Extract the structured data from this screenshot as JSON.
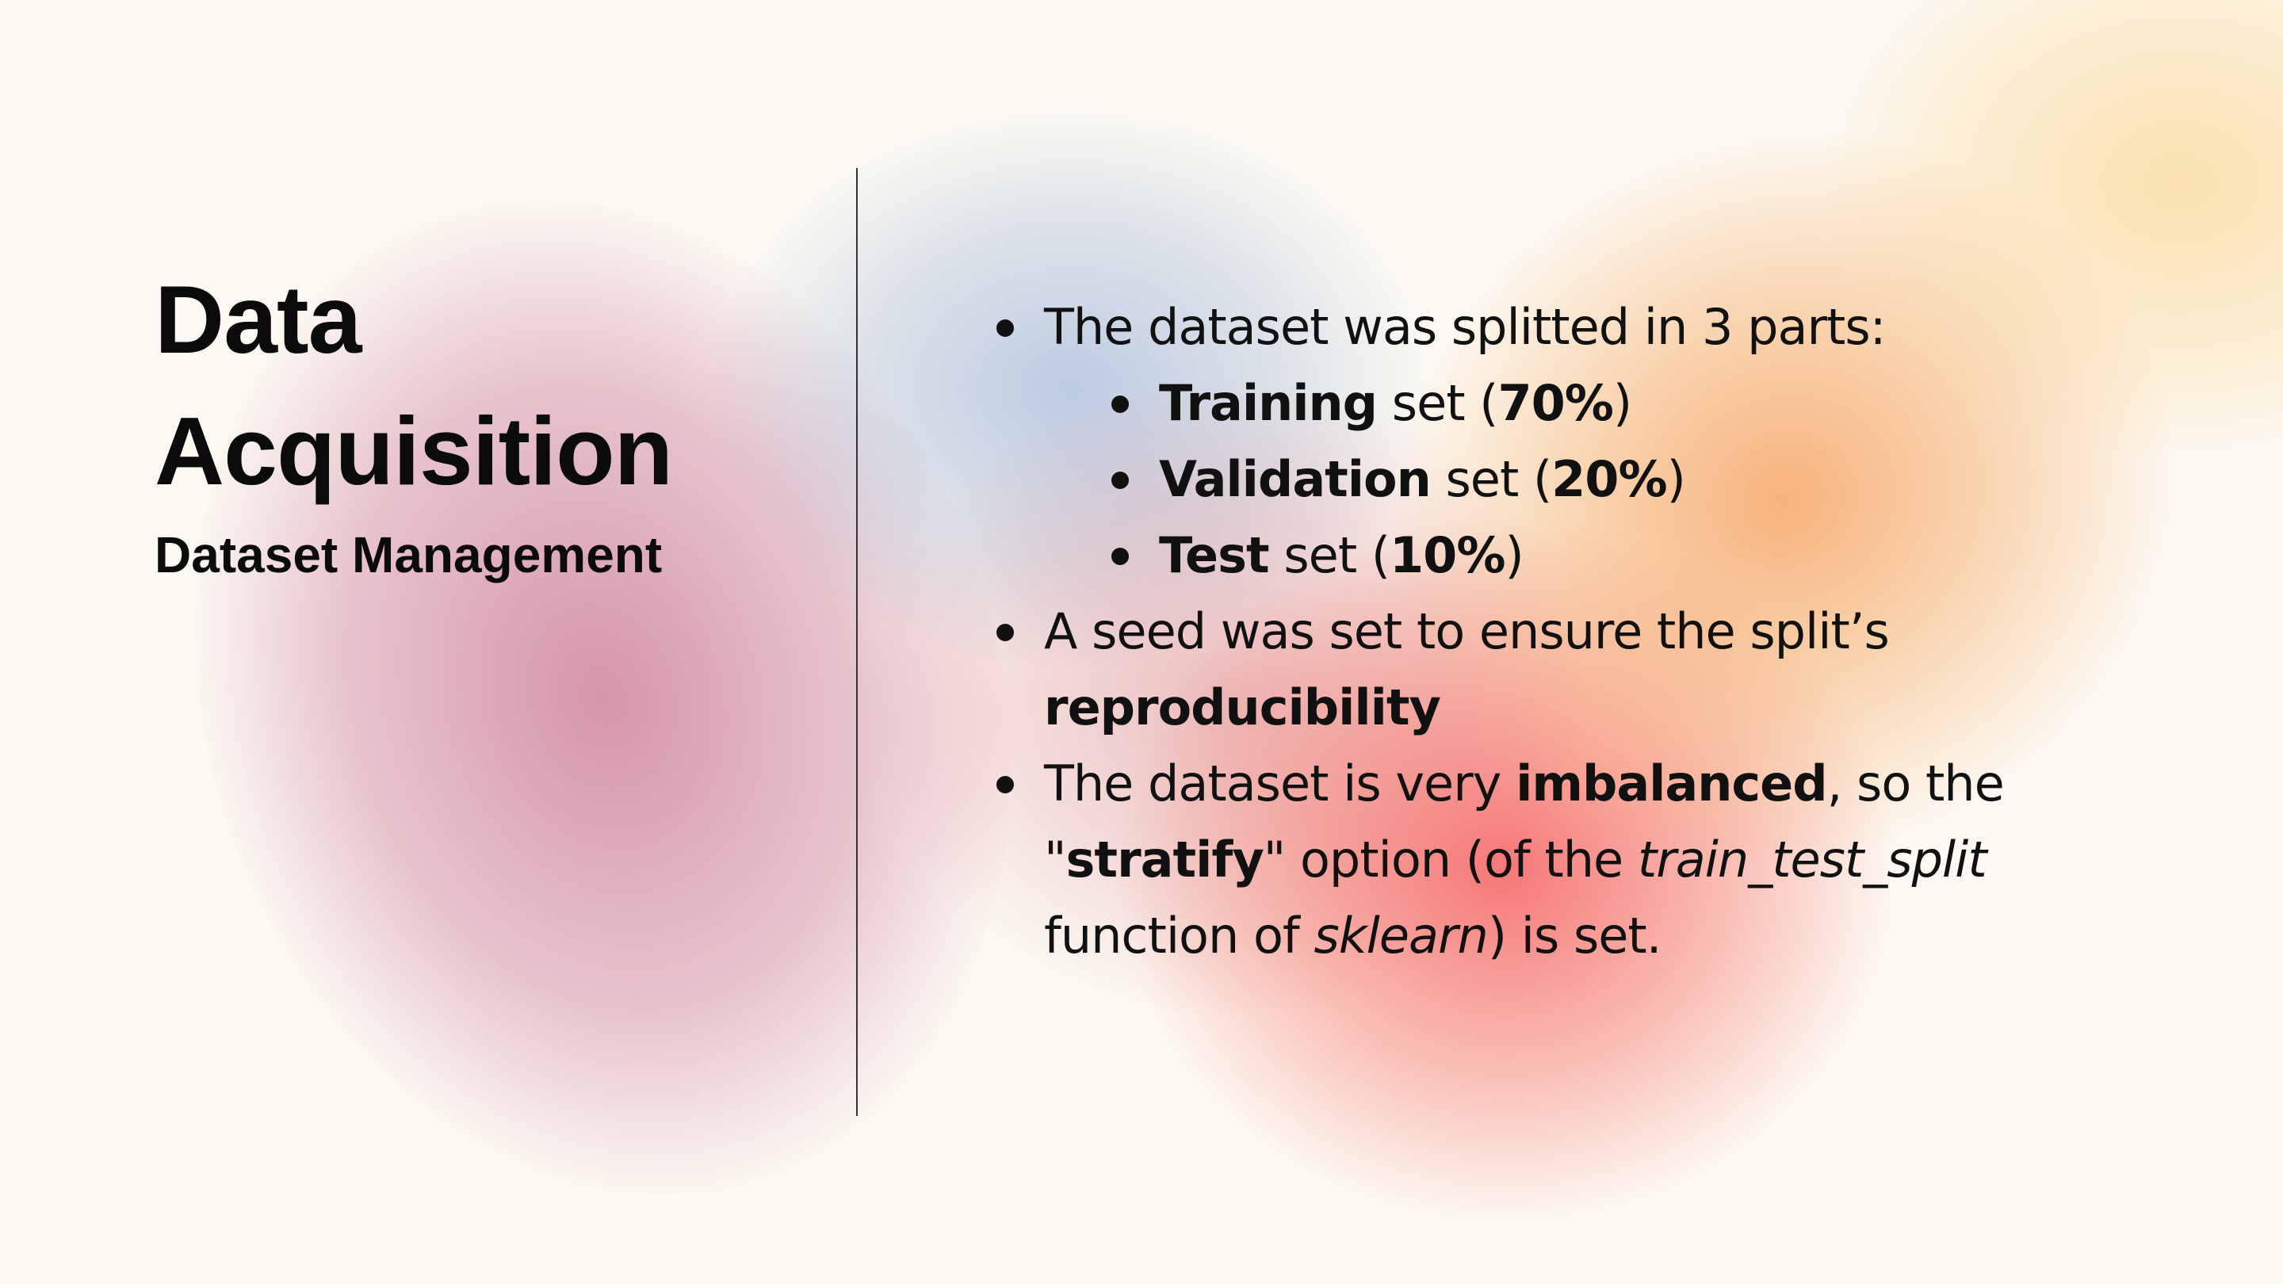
{
  "title": {
    "line1": "Data",
    "line2": "Acquisition"
  },
  "subtitle": "Dataset Management",
  "colors": {
    "background": "#fcf9f2",
    "text": "#111111",
    "divider": "#333333"
  },
  "bullets": {
    "split_intro": "The dataset was splitted in 3 parts:",
    "set_word": "set",
    "training": {
      "name": "Training",
      "percent": "70%"
    },
    "validation": {
      "name": "Validation",
      "percent": "20%"
    },
    "test": {
      "name": "Test",
      "percent": "10%"
    },
    "seed_text": "A seed was set to ensure the split’s",
    "seed_bold": "reproducibility",
    "imb_1": "The dataset is very",
    "imb_bold": "imbalanced",
    "imb_2": ", so the",
    "stratify": "stratify",
    "imb_3": "option (of the",
    "func_name": "train_test_split",
    "imb_4": "function of",
    "lib_name": "sklearn",
    "imb_5": ") is set."
  }
}
